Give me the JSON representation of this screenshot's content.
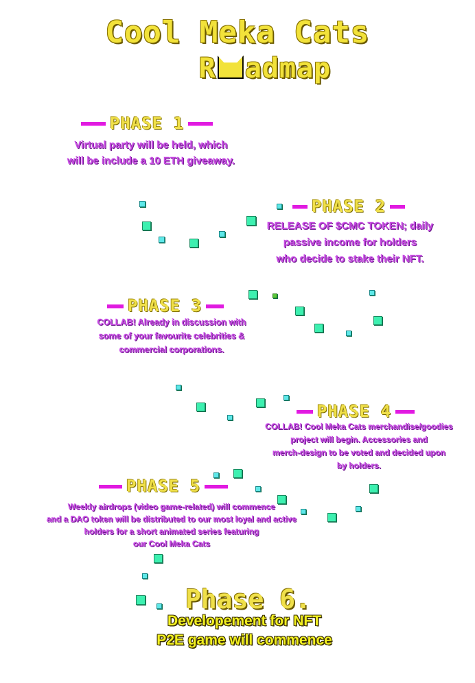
{
  "title": {
    "main": "Cool Meka Cats",
    "sub_prefix": "R",
    "sub_suffix": "admap"
  },
  "phases": [
    {
      "label": "PHASE 1",
      "text": [
        "Virtual party will be held, which",
        "will be include a 10 ETH giveaway."
      ]
    },
    {
      "label": "PHASE 2",
      "text": [
        "RELEASE OF $CMC  TOKEN; daily",
        "passive income for holders",
        "who decide to stake their NFT."
      ]
    },
    {
      "label": "PHASE 3",
      "text": [
        "COLLAB! Already in discussion with",
        "some of your favourite celebrities &",
        "commercial corporations."
      ]
    },
    {
      "label": "PHASE 4",
      "text": [
        "COLLAB! Cool Meka Cats merchandise/goodies",
        "project will begin. Accessories and",
        "merch-design to be voted and decided upon",
        "by holders."
      ]
    },
    {
      "label": "PHASE 5",
      "text": [
        "Weekly airdrops (video game-related) will commence",
        "and a DAO  token will be distributed to our most loyal and active",
        "holders for a short animated series featuring",
        "our Cool Meka Cats"
      ]
    }
  ],
  "phase6": {
    "label": "Phase 6.",
    "text": [
      "Developement for NFT",
      "P2E game will commence"
    ]
  },
  "colors": {
    "title_yellow": "#f2e23a",
    "phase_purple": "#c64ae0",
    "dash_magenta": "#e01be0",
    "square_mint": "#3df0b0"
  }
}
